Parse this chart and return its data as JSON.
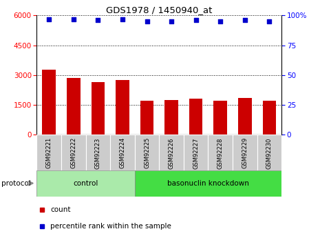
{
  "title": "GDS1978 / 1450940_at",
  "samples": [
    "GSM92221",
    "GSM92222",
    "GSM92223",
    "GSM92224",
    "GSM92225",
    "GSM92226",
    "GSM92227",
    "GSM92228",
    "GSM92229",
    "GSM92230"
  ],
  "counts": [
    3250,
    2850,
    2650,
    2750,
    1700,
    1750,
    1800,
    1700,
    1850,
    1700
  ],
  "percentile_ranks": [
    97,
    97,
    96,
    97,
    95,
    95,
    96,
    95,
    96,
    95
  ],
  "bar_color": "#cc0000",
  "dot_color": "#0000cc",
  "ylim_left": [
    0,
    6000
  ],
  "ylim_right": [
    0,
    100
  ],
  "yticks_left": [
    0,
    1500,
    3000,
    4500,
    6000
  ],
  "yticks_right": [
    0,
    25,
    50,
    75,
    100
  ],
  "groups": [
    {
      "label": "control",
      "start": 0,
      "end": 4,
      "color": "#aaeaaa"
    },
    {
      "label": "basonuclin knockdown",
      "start": 4,
      "end": 10,
      "color": "#44dd44"
    }
  ],
  "protocol_label": "protocol",
  "legend_count_label": "count",
  "legend_pct_label": "percentile rank within the sample",
  "background_color": "#ffffff",
  "tick_area_color": "#cccccc"
}
